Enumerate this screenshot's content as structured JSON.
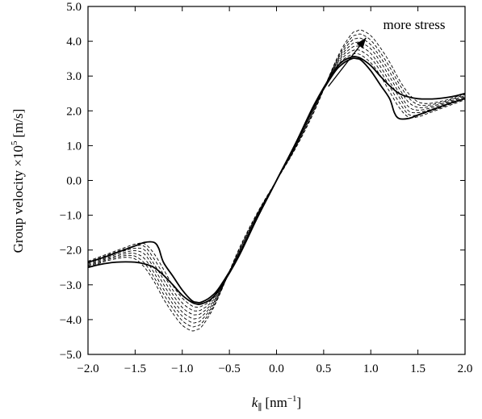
{
  "chart_data": {
    "type": "line",
    "title": "",
    "xlabel": "k_∥ [nm^−1]",
    "xlabel_parts": {
      "var": "k",
      "sub": "∥",
      "unit_open": "[nm",
      "unit_exp": "−1",
      "unit_close": "]"
    },
    "ylabel": "Group velocity ×10^5 [m/s]",
    "ylabel_parts": {
      "main": "Group velocity ×10",
      "exp": "5",
      "unit": "[m/s]"
    },
    "xlim": [
      -2.0,
      2.0
    ],
    "ylim": [
      -5.0,
      5.0
    ],
    "grid": false,
    "legend": "none",
    "x_ticks": [
      -2.0,
      -1.5,
      -1.0,
      -0.5,
      0.0,
      0.5,
      1.0,
      1.5,
      2.0
    ],
    "x_tick_labels": [
      "−2.0",
      "−1.5",
      "−1.0",
      "−0.5",
      "0.0",
      "0.5",
      "1.0",
      "1.5",
      "2.0"
    ],
    "y_ticks": [
      -5.0,
      -4.0,
      -3.0,
      -2.0,
      -1.0,
      0.0,
      1.0,
      2.0,
      3.0,
      4.0,
      5.0
    ],
    "y_tick_labels": [
      "−5.0",
      "−4.0",
      "−3.0",
      "−2.0",
      "−1.0",
      "0.0",
      "1.0",
      "2.0",
      "3.0",
      "4.0",
      "5.0"
    ],
    "annotation": {
      "text": "more stress",
      "arrow_from": [
        0.55,
        2.7
      ],
      "arrow_to": [
        0.95,
        4.1
      ]
    },
    "colors": {
      "line": "#000000"
    },
    "series": [
      {
        "style": "solid",
        "x": [
          0,
          0.2,
          0.4,
          0.6,
          0.7,
          0.8,
          0.85,
          0.9,
          1.0,
          1.1,
          1.2,
          1.25,
          1.3,
          1.4,
          1.5,
          1.6,
          1.7,
          1.8,
          1.9,
          2.0
        ],
        "y": [
          0,
          1.05,
          2.15,
          3.05,
          3.35,
          3.5,
          3.5,
          3.45,
          3.15,
          2.75,
          2.35,
          1.95,
          1.78,
          1.78,
          1.88,
          1.98,
          2.08,
          2.18,
          2.27,
          2.35
        ]
      },
      {
        "style": "solid",
        "x": [
          0,
          0.2,
          0.4,
          0.6,
          0.7,
          0.8,
          0.85,
          0.9,
          1.0,
          1.1,
          1.2,
          1.3,
          1.4,
          1.5,
          1.6,
          1.7,
          1.8,
          1.9,
          2.0
        ],
        "y": [
          0,
          1.05,
          2.18,
          3.1,
          3.42,
          3.55,
          3.55,
          3.5,
          3.3,
          3.0,
          2.72,
          2.5,
          2.4,
          2.35,
          2.34,
          2.35,
          2.38,
          2.43,
          2.5
        ]
      },
      {
        "style": "dashed",
        "x": [
          0,
          0.2,
          0.4,
          0.6,
          0.7,
          0.8,
          0.85,
          0.9,
          1.0,
          1.1,
          1.2,
          1.3,
          1.4,
          1.5,
          1.6,
          1.7,
          1.8,
          1.9,
          2.0
        ],
        "y": [
          0,
          1.03,
          2.15,
          3.12,
          3.46,
          3.62,
          3.64,
          3.6,
          3.38,
          3.02,
          2.55,
          2.1,
          1.82,
          1.83,
          1.92,
          2.02,
          2.12,
          2.22,
          2.32
        ]
      },
      {
        "style": "dashed",
        "x": [
          0,
          0.2,
          0.4,
          0.6,
          0.7,
          0.8,
          0.85,
          0.9,
          1.0,
          1.1,
          1.2,
          1.3,
          1.4,
          1.5,
          1.6,
          1.7,
          1.8,
          1.9,
          2.0
        ],
        "y": [
          0,
          1.01,
          2.12,
          3.15,
          3.52,
          3.72,
          3.75,
          3.72,
          3.52,
          3.15,
          2.7,
          2.25,
          1.9,
          1.88,
          1.96,
          2.05,
          2.15,
          2.25,
          2.35
        ]
      },
      {
        "style": "dashed",
        "x": [
          0,
          0.2,
          0.4,
          0.6,
          0.7,
          0.8,
          0.85,
          0.9,
          1.0,
          1.1,
          1.2,
          1.3,
          1.4,
          1.5,
          1.6,
          1.7,
          1.8,
          1.9,
          2.0
        ],
        "y": [
          0,
          0.99,
          2.1,
          3.17,
          3.58,
          3.82,
          3.86,
          3.84,
          3.65,
          3.28,
          2.84,
          2.4,
          2.0,
          1.95,
          2.01,
          2.09,
          2.18,
          2.28,
          2.38
        ]
      },
      {
        "style": "dashed",
        "x": [
          0,
          0.2,
          0.4,
          0.6,
          0.7,
          0.8,
          0.85,
          0.9,
          1.0,
          1.1,
          1.2,
          1.3,
          1.4,
          1.5,
          1.6,
          1.7,
          1.8,
          1.9,
          2.0
        ],
        "y": [
          0,
          0.97,
          2.07,
          3.2,
          3.64,
          3.92,
          3.97,
          3.96,
          3.78,
          3.42,
          2.98,
          2.52,
          2.12,
          2.02,
          2.06,
          2.13,
          2.22,
          2.31,
          2.41
        ]
      },
      {
        "style": "dashed",
        "x": [
          0,
          0.2,
          0.4,
          0.6,
          0.7,
          0.8,
          0.85,
          0.9,
          1.0,
          1.1,
          1.2,
          1.3,
          1.4,
          1.5,
          1.6,
          1.7,
          1.8,
          1.9,
          2.0
        ],
        "y": [
          0,
          0.95,
          2.04,
          3.22,
          3.7,
          4.02,
          4.08,
          4.08,
          3.9,
          3.55,
          3.12,
          2.65,
          2.25,
          2.1,
          2.11,
          2.17,
          2.25,
          2.34,
          2.44
        ]
      },
      {
        "style": "dashed",
        "x": [
          0,
          0.2,
          0.4,
          0.6,
          0.7,
          0.8,
          0.85,
          0.9,
          1.0,
          1.1,
          1.2,
          1.3,
          1.4,
          1.5,
          1.6,
          1.7,
          1.8,
          1.9,
          2.0
        ],
        "y": [
          0,
          0.93,
          2.01,
          3.24,
          3.76,
          4.12,
          4.18,
          4.2,
          4.03,
          3.68,
          3.26,
          2.78,
          2.38,
          2.18,
          2.16,
          2.21,
          2.28,
          2.37,
          2.47
        ]
      },
      {
        "style": "dashed",
        "x": [
          0,
          0.2,
          0.4,
          0.6,
          0.7,
          0.8,
          0.85,
          0.9,
          1.0,
          1.1,
          1.2,
          1.3,
          1.4,
          1.5,
          1.6,
          1.7,
          1.8,
          1.9,
          2.0
        ],
        "y": [
          0,
          0.91,
          1.98,
          3.26,
          3.82,
          4.22,
          4.29,
          4.32,
          4.16,
          3.82,
          3.4,
          2.9,
          2.5,
          2.26,
          2.21,
          2.25,
          2.31,
          2.4,
          2.5
        ]
      }
    ]
  }
}
